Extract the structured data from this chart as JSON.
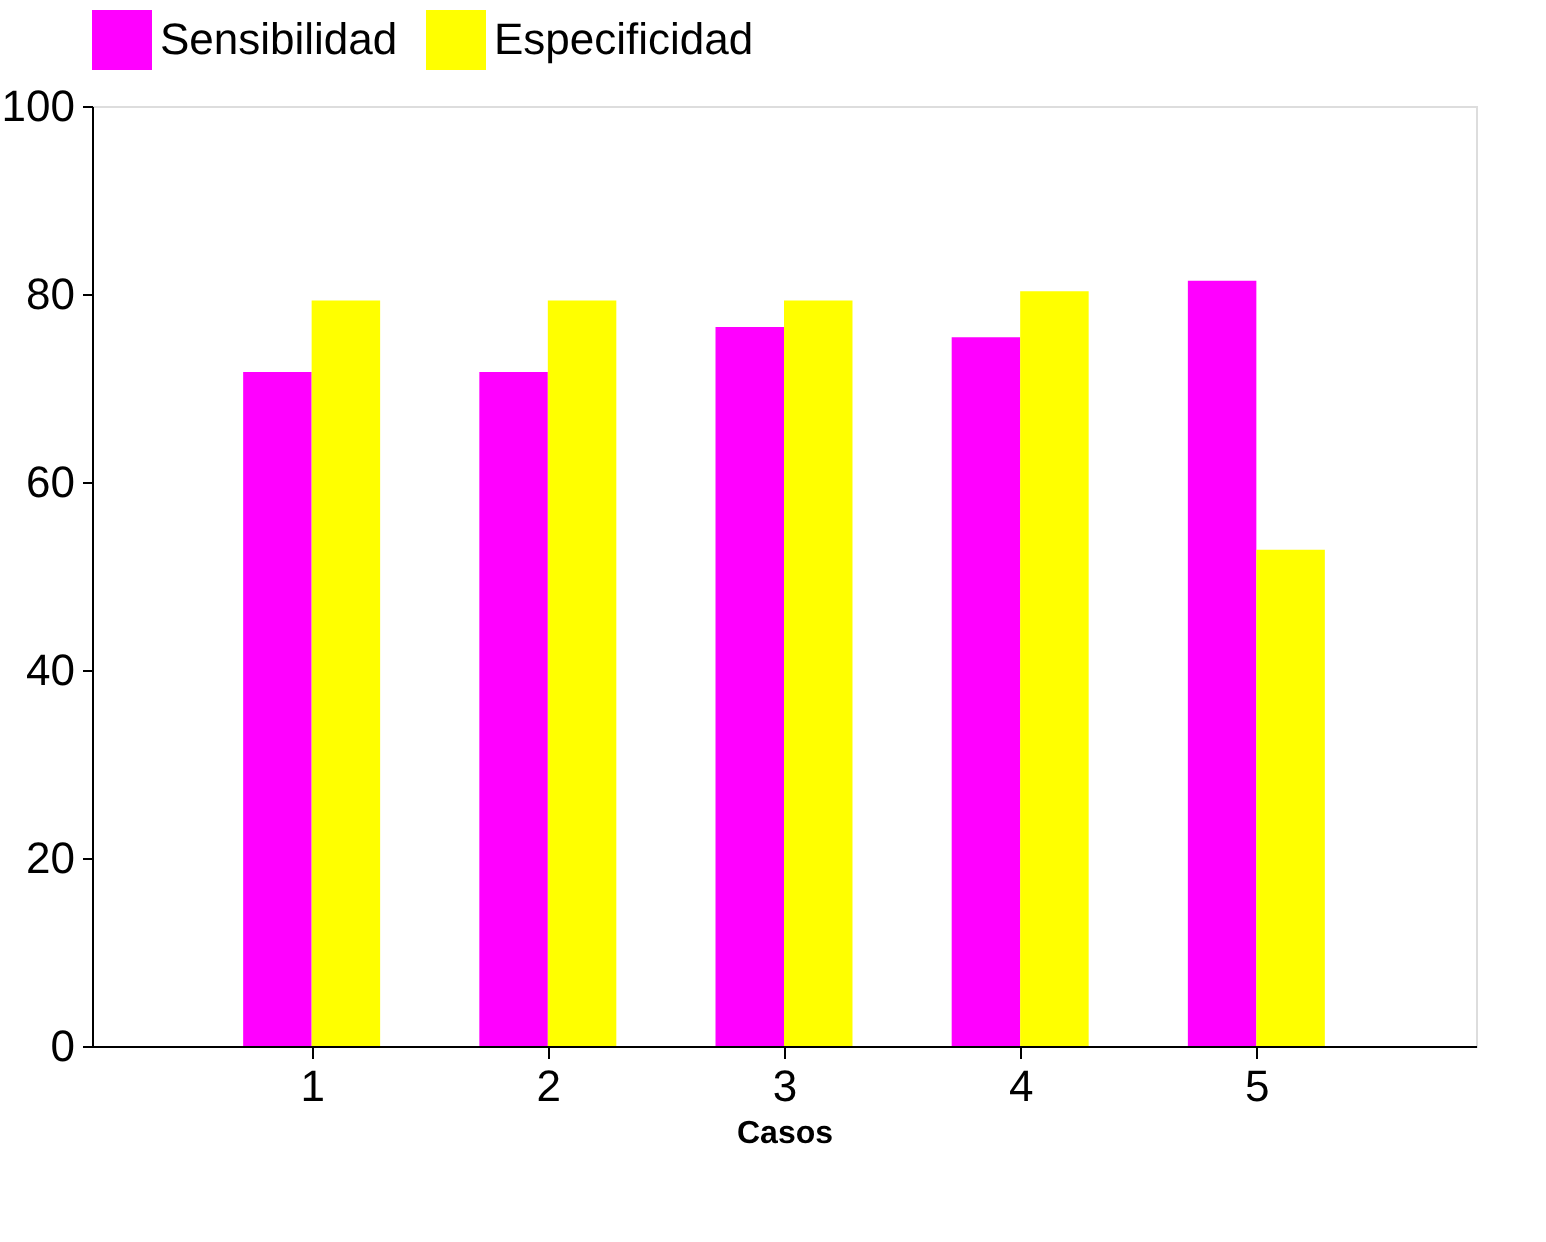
{
  "chart_data": {
    "type": "bar",
    "xlabel": "Casos",
    "categories": [
      "1",
      "2",
      "3",
      "4",
      "5"
    ],
    "series": [
      {
        "name": "Sensibilidad",
        "color": "#ff00ff",
        "values": [
          71.7,
          71.7,
          76.5,
          75.4,
          81.4
        ]
      },
      {
        "name": "Especificidad",
        "color": "#ffff00",
        "values": [
          79.3,
          79.3,
          79.3,
          80.3,
          52.8
        ]
      }
    ],
    "ylim": [
      0,
      100
    ],
    "yticks": [
      0,
      20,
      40,
      60,
      80,
      100
    ],
    "grid": false,
    "legend": "top"
  }
}
